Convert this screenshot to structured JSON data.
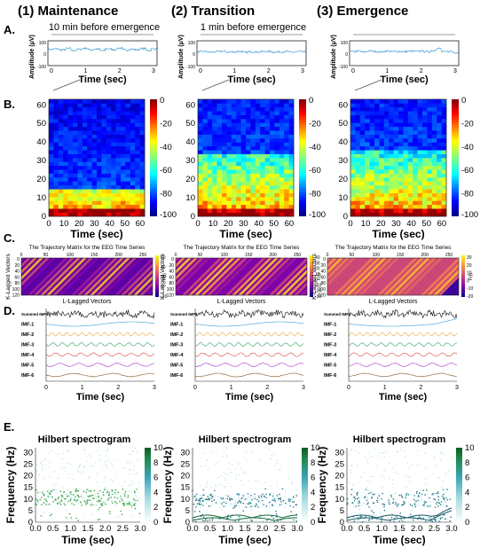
{
  "columns": [
    {
      "number": "(1)",
      "title": "Maintenance",
      "epoch_label": "10 min before emergence"
    },
    {
      "number": "(2)",
      "title": "Transition",
      "epoch_label": "1 min before emergence"
    },
    {
      "number": "(3)",
      "title": "Emergence",
      "epoch_label": ""
    }
  ],
  "panel_labels": [
    "A.",
    "B.",
    "C.",
    "D.",
    "E."
  ],
  "colors": {
    "trace": "#3a9bd6",
    "hilbert": "#1a8a3a",
    "hilbert_cb_top": "#0b5d1e"
  },
  "chart_data": [
    {
      "panel": "A",
      "type": "line",
      "description_free": true,
      "ylabel": "Amplitude (μV)",
      "xlabel": "Time (sec)",
      "xlim": [
        0,
        3
      ],
      "ylim": [
        -100,
        100
      ],
      "x_ticks": [
        "0",
        "1",
        "2",
        "3"
      ],
      "y_ticks": [
        "100",
        "0",
        "-100"
      ],
      "series": [
        {
          "values": [
            30,
            34,
            26,
            38,
            22,
            31,
            40,
            27,
            33,
            20,
            36,
            29,
            42,
            25,
            32,
            28,
            37,
            23,
            34,
            30
          ]
        },
        {
          "values": [
            10,
            14,
            8,
            12,
            16,
            9,
            11,
            15,
            7,
            13,
            10,
            12,
            14,
            9,
            11,
            13,
            8,
            12,
            10,
            15
          ]
        },
        {
          "values": [
            12,
            16,
            10,
            18,
            14,
            11,
            17,
            13,
            15,
            12,
            16,
            14,
            18,
            12,
            22,
            38,
            10,
            14,
            6,
            2
          ]
        }
      ]
    },
    {
      "panel": "B",
      "type": "heatmap",
      "xlabel": "Time (sec)",
      "xlim": [
        0,
        60
      ],
      "ylim": [
        0,
        60
      ],
      "x_ticks": [
        "0",
        "10",
        "20",
        "30",
        "40",
        "50",
        "60"
      ],
      "y_ticks": [
        "0",
        "10",
        "20",
        "30",
        "40",
        "50",
        "60"
      ],
      "colorbar_ticks": [
        "0",
        "-20",
        "-40",
        "-60",
        "-80",
        "-100"
      ],
      "colorbar_range": [
        -100,
        0
      ]
    },
    {
      "panel": "C",
      "type": "heatmap",
      "title": "The Trajectory Matrix for the EEG Time Series",
      "xlabel": "L-Lagged Vectors",
      "ylabel": "K-Lagged Vectors",
      "colorbar_label": "F(t)",
      "x_ticks": [
        "0",
        "50",
        "100",
        "150",
        "200",
        "250"
      ],
      "y_ticks": [
        "0",
        "20",
        "40",
        "60",
        "80",
        "100",
        "120"
      ],
      "colorbar_ticks": [
        [
          "60",
          "40",
          "20",
          "0",
          "-20"
        ],
        [
          "40",
          "30",
          "20",
          "10",
          "0",
          "-10",
          "-20",
          "-30"
        ],
        [
          "30",
          "20",
          "10",
          "0",
          "-10",
          "-20"
        ]
      ]
    },
    {
      "panel": "D",
      "type": "line",
      "xlabel": "Time (sec)",
      "x_ticks": [
        "0",
        "1",
        "2",
        "3"
      ],
      "series_names": [
        "Summed IMFs",
        "IMF-1",
        "IMF-2",
        "IMF-3",
        "IMF-4",
        "IMF-5",
        "IMF-6"
      ]
    },
    {
      "panel": "E",
      "type": "scatter",
      "title": "Hilbert spectrogram",
      "xlabel": "Time (sec)",
      "ylabel": "Frequency (Hz)",
      "xlim": [
        0,
        3
      ],
      "ylim": [
        0,
        32
      ],
      "x_ticks": [
        "0.0",
        "0.5",
        "1.0",
        "1.5",
        "2.0",
        "2.5",
        "3.0"
      ],
      "y_ticks": [
        "0",
        "5",
        "10",
        "15",
        "20",
        "25",
        "30"
      ],
      "colorbar_ticks": [
        "0",
        "2",
        "4",
        "6",
        "8",
        "10"
      ],
      "colorbar_range": [
        0,
        10
      ]
    }
  ]
}
